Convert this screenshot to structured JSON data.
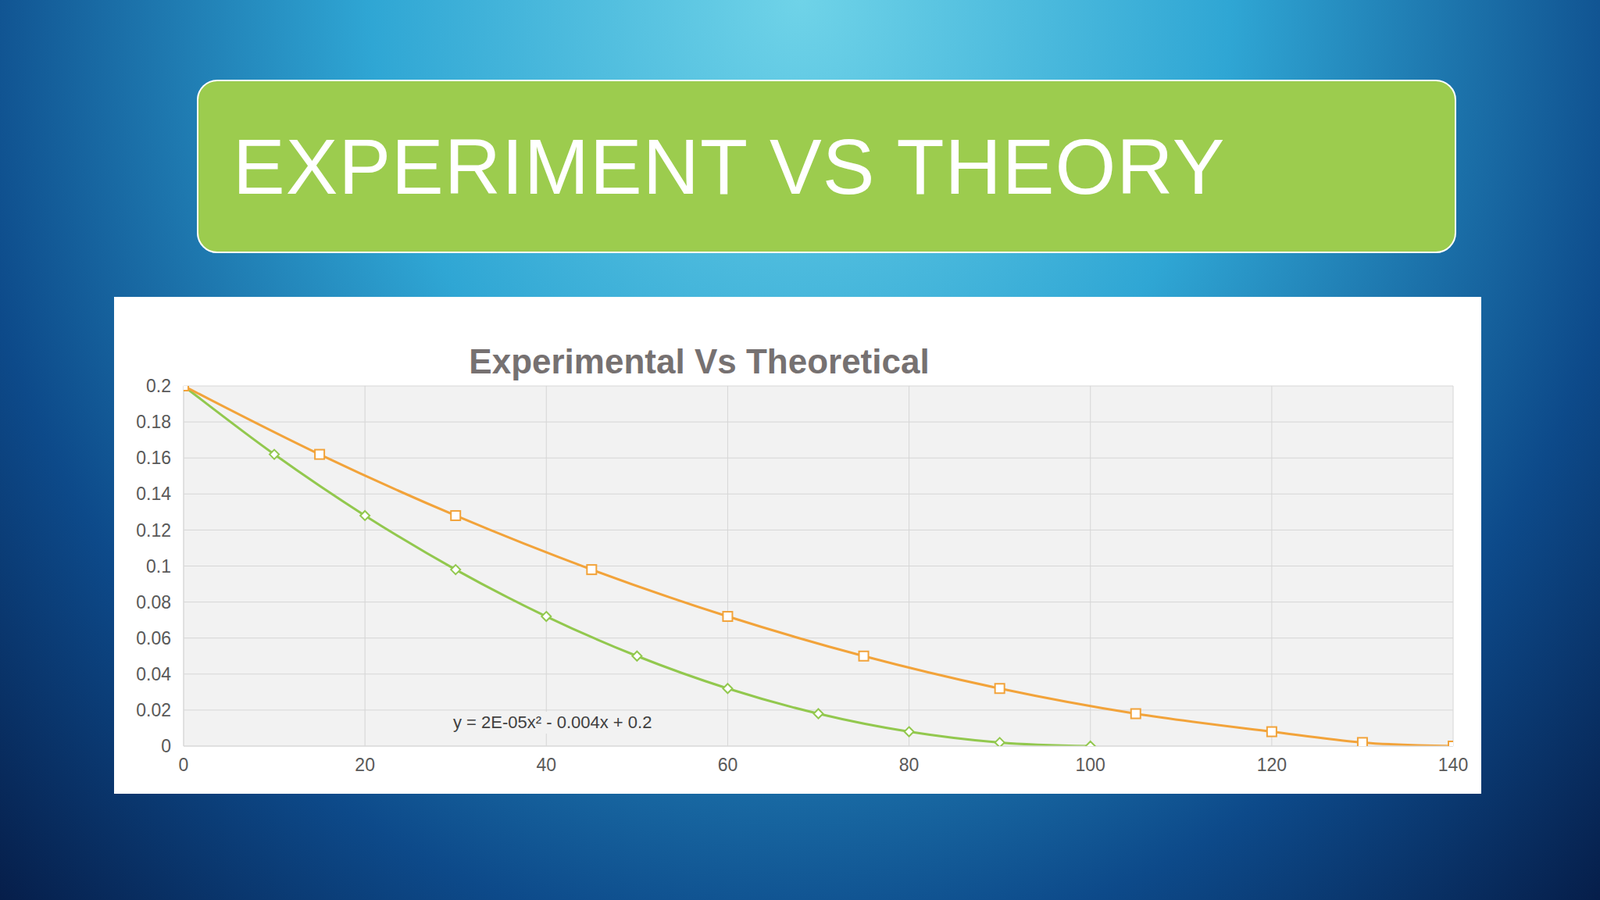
{
  "header": {
    "title": "EXPERIMENT VS THEORY"
  },
  "chart_data": {
    "type": "line",
    "title": "Experimental Vs Theoretical",
    "annotations": [
      "y = 2E-05x² - 0.004x + 0.2"
    ],
    "series": [
      {
        "color": "#92c84e",
        "marker": "diamond",
        "x": [
          0,
          10,
          20,
          30,
          40,
          50,
          60,
          70,
          80,
          90,
          100
        ],
        "values": [
          0.2,
          0.162,
          0.128,
          0.098,
          0.072,
          0.05,
          0.032,
          0.018,
          0.008,
          0.002,
          0
        ]
      },
      {
        "color": "#f2a33a",
        "marker": "square",
        "x": [
          0,
          15,
          30,
          45,
          60,
          75,
          90,
          105,
          120,
          130,
          140
        ],
        "values": [
          0.2,
          0.162,
          0.128,
          0.098,
          0.072,
          0.05,
          0.032,
          0.018,
          0.008,
          0.002,
          0
        ]
      }
    ],
    "xlim": [
      0,
      140
    ],
    "xticks": [
      0,
      20,
      40,
      60,
      80,
      100,
      120,
      140
    ],
    "ylim": [
      0,
      0.2
    ],
    "yticks": [
      0,
      0.02,
      0.04,
      0.06,
      0.08,
      0.1,
      0.12,
      0.14,
      0.16,
      0.18,
      0.2
    ],
    "grid": true
  }
}
